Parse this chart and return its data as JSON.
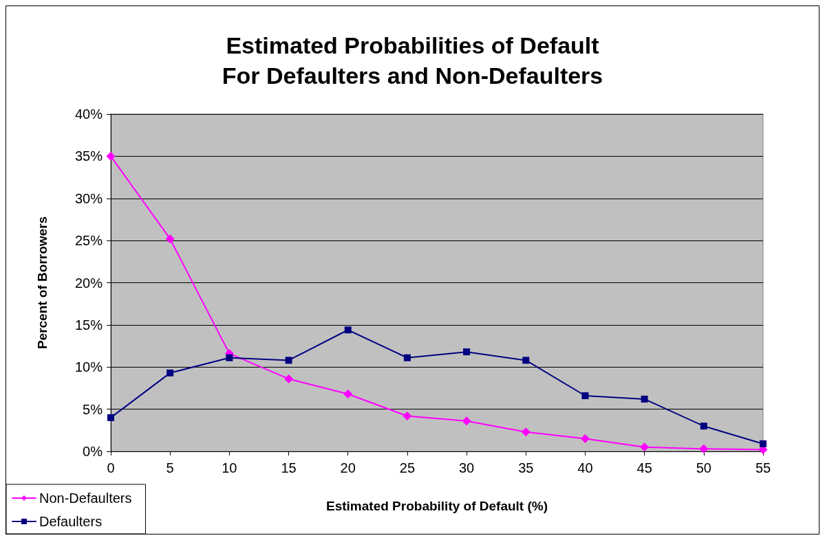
{
  "chart_data": {
    "type": "line",
    "title": "Estimated Probabilities of Default\nFor Defaulters and Non-Defaulters",
    "xlabel": "Estimated Probability of Default (%)",
    "ylabel": "Percent of Borrowers",
    "categories": [
      "0",
      "5",
      "10",
      "15",
      "20",
      "25",
      "30",
      "35",
      "40",
      "45",
      "50",
      "55"
    ],
    "series": [
      {
        "name": "Non-Defaulters",
        "color": "#ff00ff",
        "marker": "diamond",
        "values": [
          35,
          25.2,
          11.6,
          8.6,
          6.8,
          4.2,
          3.6,
          2.3,
          1.5,
          0.5,
          0.3,
          0.2
        ]
      },
      {
        "name": "Defaulters",
        "color": "#000080",
        "marker": "square",
        "values": [
          4,
          9.3,
          11.1,
          10.8,
          14.4,
          11.1,
          11.8,
          10.8,
          6.6,
          6.2,
          3,
          0.9
        ]
      }
    ],
    "ylim": [
      0,
      40
    ],
    "yticks": [
      {
        "value": 0,
        "label": "0%"
      },
      {
        "value": 5,
        "label": "5%"
      },
      {
        "value": 10,
        "label": "10%"
      },
      {
        "value": 15,
        "label": "15%"
      },
      {
        "value": 20,
        "label": "20%"
      },
      {
        "value": 25,
        "label": "25%"
      },
      {
        "value": 30,
        "label": "30%"
      },
      {
        "value": 35,
        "label": "35%"
      },
      {
        "value": 40,
        "label": "40%"
      }
    ],
    "grid": "y",
    "legend": "bottom left",
    "line_style": "solid"
  }
}
